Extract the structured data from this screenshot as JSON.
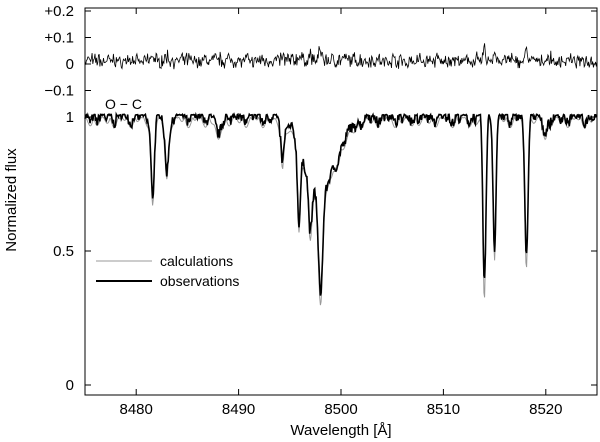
{
  "chart_data": {
    "type": "line",
    "xlabel": "Wavelength [Å]",
    "ylabel": "Normalized flux",
    "xlim": [
      8475,
      8525
    ],
    "ylim": [
      0,
      1.0
    ],
    "x_ticks": [
      8480,
      8490,
      8500,
      8510,
      8520
    ],
    "x_tick_labels": [
      "8480",
      "8490",
      "8500",
      "8510",
      "8520"
    ],
    "y_ticks": [
      0,
      0.5,
      1
    ],
    "y_tick_labels": [
      "0",
      "0.5",
      "1"
    ],
    "residual_ticks": [
      0.2,
      0.1,
      0,
      -0.1
    ],
    "residual_tick_labels": [
      "+0.2",
      "+0.1",
      "0",
      "−0.1"
    ],
    "residual_label": "O − C",
    "legend_position": "lower-left",
    "series": [
      {
        "name": "calculations",
        "color": "#999999",
        "style": "thin"
      },
      {
        "name": "observations",
        "color": "#000000",
        "style": "thick"
      }
    ],
    "absorption_lines": [
      {
        "center": 8481.6,
        "depth": 0.32,
        "width": 0.22
      },
      {
        "center": 8483.0,
        "depth": 0.22,
        "width": 0.25
      },
      {
        "center": 8488.0,
        "depth": 0.08,
        "width": 0.3
      },
      {
        "center": 8494.3,
        "depth": 0.17,
        "width": 0.2
      },
      {
        "center": 8495.9,
        "depth": 0.35,
        "width": 0.2
      },
      {
        "center": 8497.0,
        "depth": 0.3,
        "width": 0.25
      },
      {
        "center": 8498.0,
        "depth": 0.57,
        "width": 0.3
      },
      {
        "center": 8514.0,
        "depth": 0.68,
        "width": 0.2
      },
      {
        "center": 8515.0,
        "depth": 0.52,
        "width": 0.2
      },
      {
        "center": 8518.1,
        "depth": 0.55,
        "width": 0.22
      },
      {
        "center": 8520.0,
        "depth": 0.06,
        "width": 0.3
      }
    ],
    "broad_wings": {
      "center": 8498.0,
      "depth": 0.28,
      "width": 2.2
    }
  }
}
